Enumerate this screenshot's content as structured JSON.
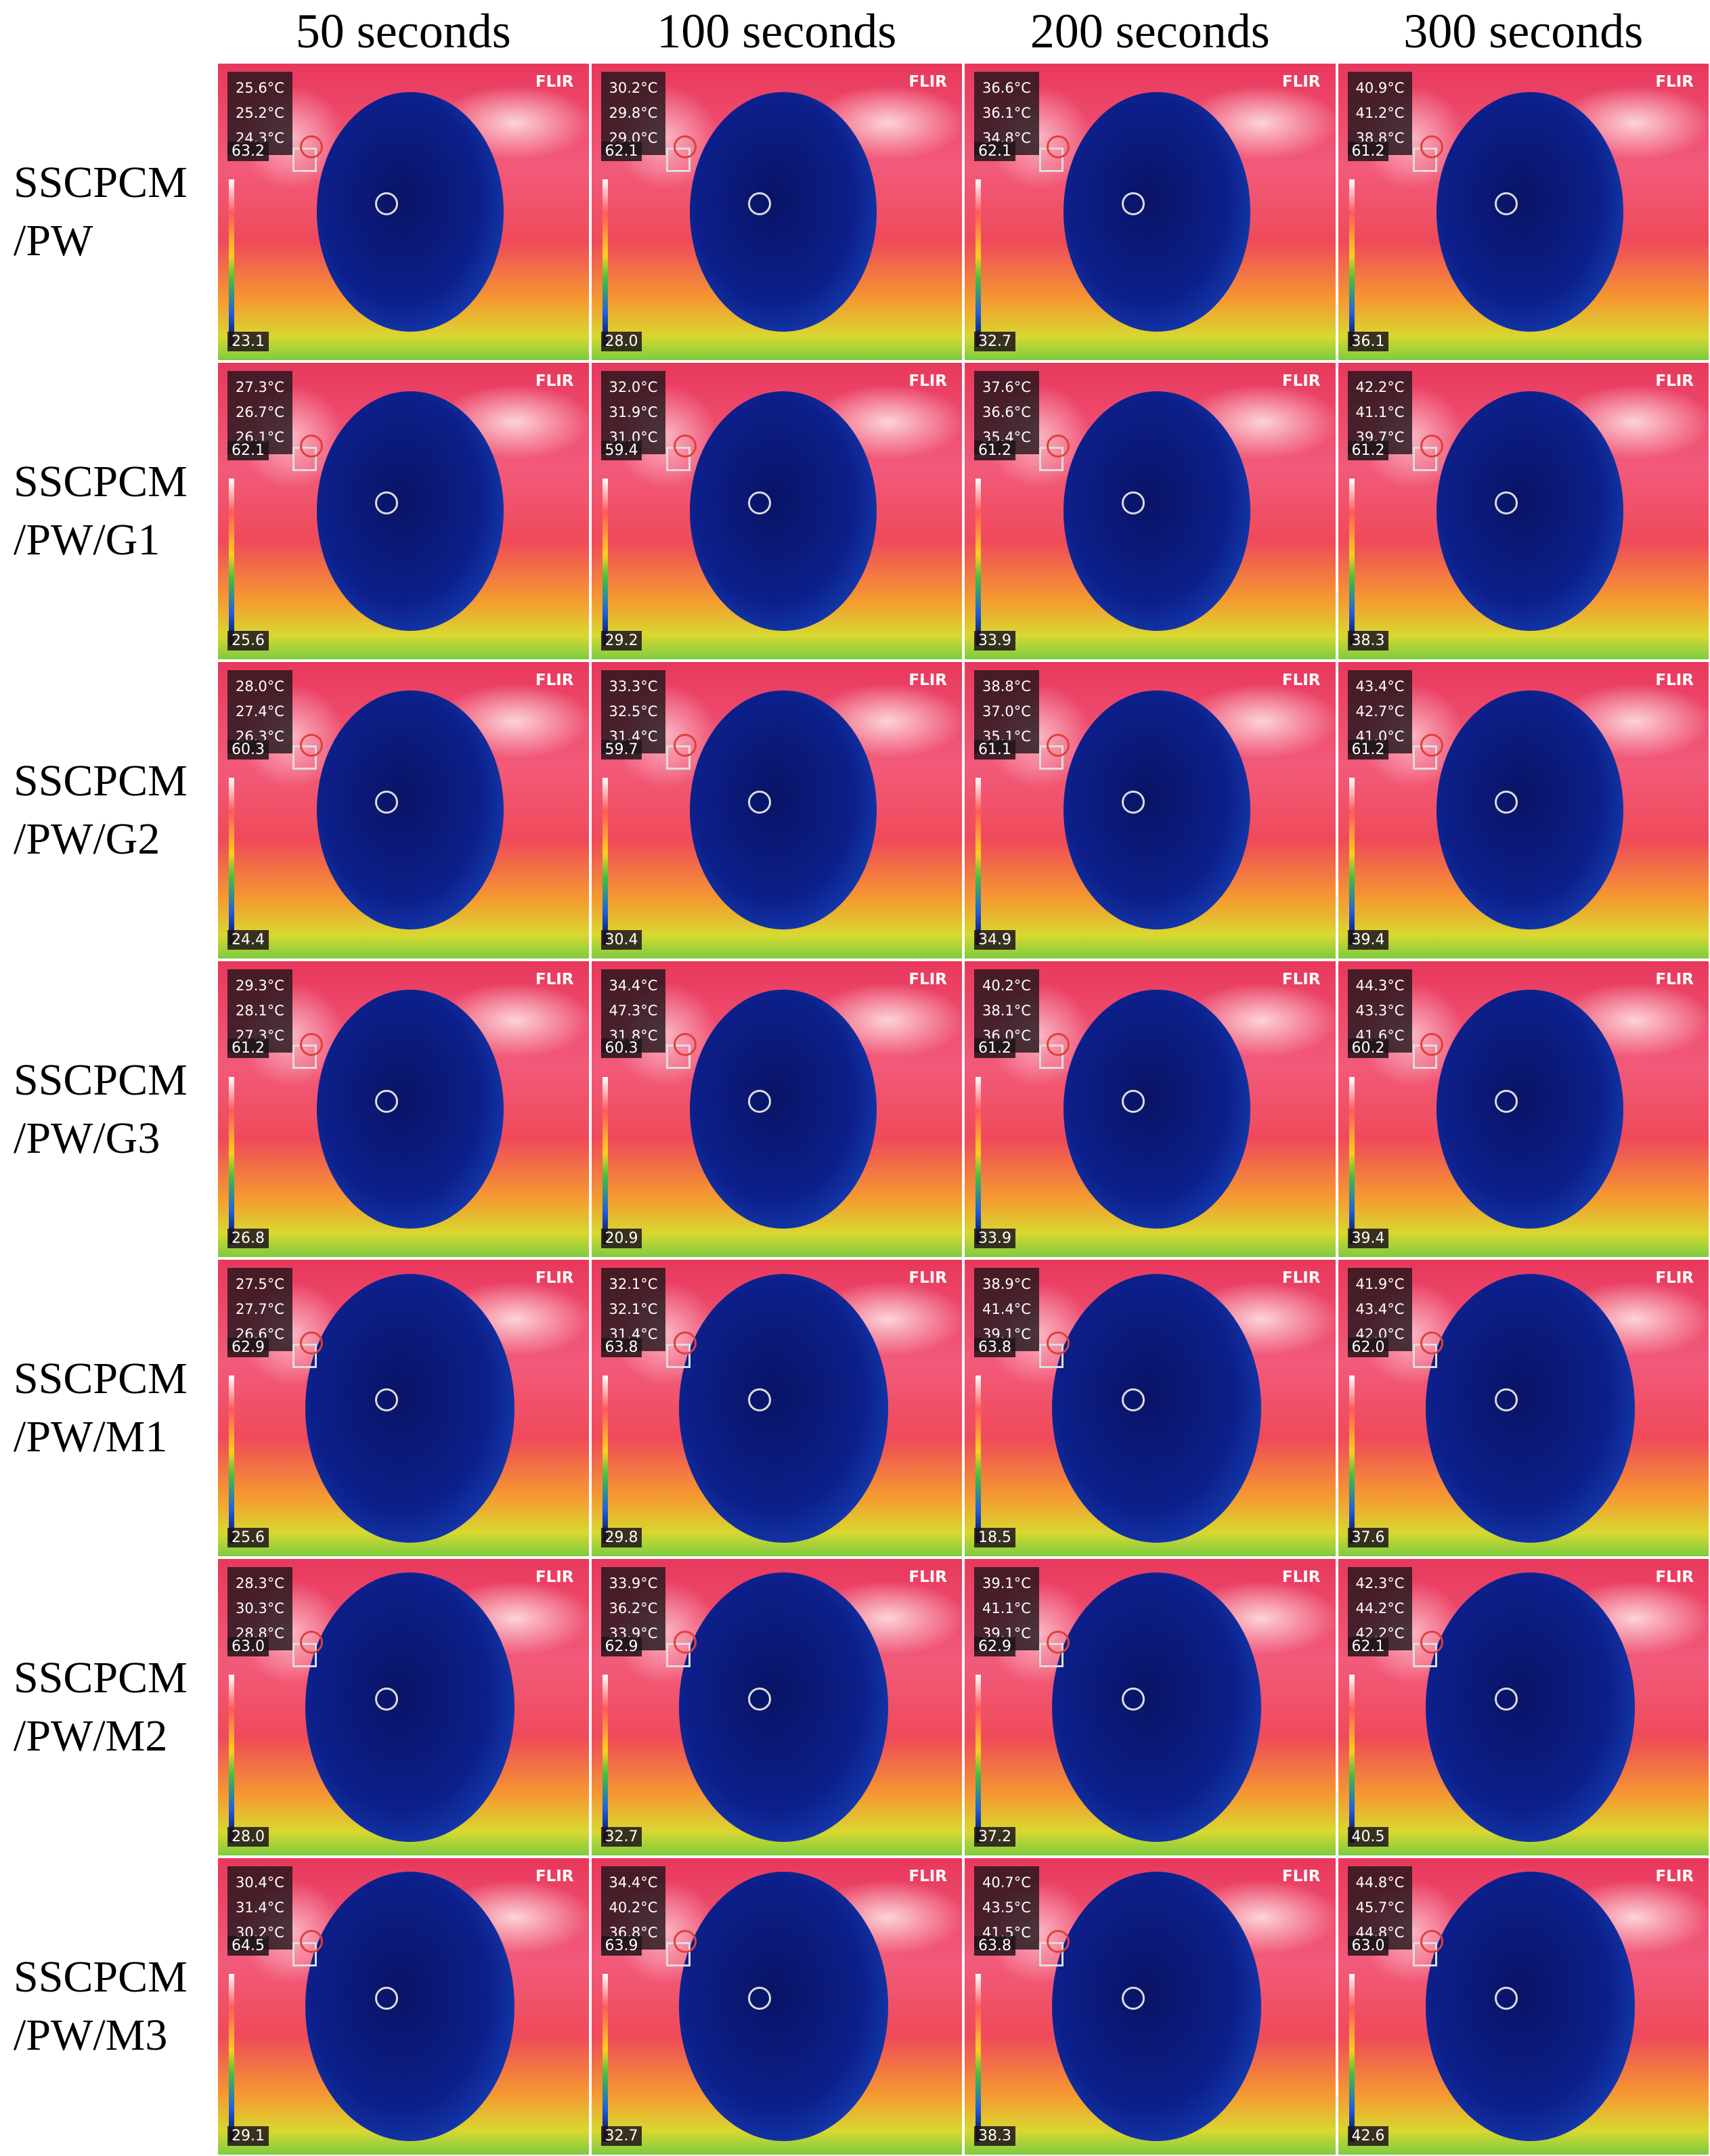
{
  "columns": [
    "50 seconds",
    "100 seconds",
    "200 seconds",
    "300 seconds"
  ],
  "brand": "FLIR",
  "rows": [
    {
      "label": [
        "SSCPCM",
        "/PW"
      ],
      "cells": [
        {
          "readings": [
            "25.6°C",
            "25.2°C",
            "24.3°C"
          ],
          "scale_max": "63.2",
          "scale_min": "23.1"
        },
        {
          "readings": [
            "30.2°C",
            "29.8°C",
            "29.0°C"
          ],
          "scale_max": "62.1",
          "scale_min": "28.0"
        },
        {
          "readings": [
            "36.6°C",
            "36.1°C",
            "34.8°C"
          ],
          "scale_max": "62.1",
          "scale_min": "32.7"
        },
        {
          "readings": [
            "40.9°C",
            "41.2°C",
            "38.8°C"
          ],
          "scale_max": "61.2",
          "scale_min": "36.1"
        }
      ]
    },
    {
      "label": [
        "SSCPCM",
        "/PW/G1"
      ],
      "cells": [
        {
          "readings": [
            "27.3°C",
            "26.7°C",
            "26.1°C"
          ],
          "scale_max": "62.1",
          "scale_min": "25.6"
        },
        {
          "readings": [
            "32.0°C",
            "31.9°C",
            "31.0°C"
          ],
          "scale_max": "59.4",
          "scale_min": "29.2"
        },
        {
          "readings": [
            "37.6°C",
            "36.6°C",
            "35.4°C"
          ],
          "scale_max": "61.2",
          "scale_min": "33.9"
        },
        {
          "readings": [
            "42.2°C",
            "41.1°C",
            "39.7°C"
          ],
          "scale_max": "61.2",
          "scale_min": "38.3"
        }
      ]
    },
    {
      "label": [
        "SSCPCM",
        "/PW/G2"
      ],
      "cells": [
        {
          "readings": [
            "28.0°C",
            "27.4°C",
            "26.3°C"
          ],
          "scale_max": "60.3",
          "scale_min": "24.4"
        },
        {
          "readings": [
            "33.3°C",
            "32.5°C",
            "31.4°C"
          ],
          "scale_max": "59.7",
          "scale_min": "30.4"
        },
        {
          "readings": [
            "38.8°C",
            "37.0°C",
            "35.1°C"
          ],
          "scale_max": "61.1",
          "scale_min": "34.9"
        },
        {
          "readings": [
            "43.4°C",
            "42.7°C",
            "41.0°C"
          ],
          "scale_max": "61.2",
          "scale_min": "39.4"
        }
      ]
    },
    {
      "label": [
        "SSCPCM",
        "/PW/G3"
      ],
      "cells": [
        {
          "readings": [
            "29.3°C",
            "28.1°C",
            "27.3°C"
          ],
          "scale_max": "61.2",
          "scale_min": "26.8"
        },
        {
          "readings": [
            "34.4°C",
            "47.3°C",
            "31.8°C"
          ],
          "scale_max": "60.3",
          "scale_min": "20.9"
        },
        {
          "readings": [
            "40.2°C",
            "38.1°C",
            "36.0°C"
          ],
          "scale_max": "61.2",
          "scale_min": "33.9"
        },
        {
          "readings": [
            "44.3°C",
            "43.3°C",
            "41.6°C"
          ],
          "scale_max": "60.2",
          "scale_min": "39.4"
        }
      ]
    },
    {
      "label": [
        "SSCPCM",
        "/PW/M1"
      ],
      "cells": [
        {
          "readings": [
            "27.5°C",
            "27.7°C",
            "26.6°C"
          ],
          "scale_max": "62.9",
          "scale_min": "25.6"
        },
        {
          "readings": [
            "32.1°C",
            "32.1°C",
            "31.4°C"
          ],
          "scale_max": "63.8",
          "scale_min": "29.8"
        },
        {
          "readings": [
            "38.9°C",
            "41.4°C",
            "39.1°C"
          ],
          "scale_max": "63.8",
          "scale_min": "18.5"
        },
        {
          "readings": [
            "41.9°C",
            "43.4°C",
            "42.0°C"
          ],
          "scale_max": "62.0",
          "scale_min": "37.6"
        }
      ]
    },
    {
      "label": [
        "SSCPCM",
        "/PW/M2"
      ],
      "cells": [
        {
          "readings": [
            "28.3°C",
            "30.3°C",
            "28.8°C"
          ],
          "scale_max": "63.0",
          "scale_min": "28.0"
        },
        {
          "readings": [
            "33.9°C",
            "36.2°C",
            "33.9°C"
          ],
          "scale_max": "62.9",
          "scale_min": "32.7"
        },
        {
          "readings": [
            "39.1°C",
            "41.1°C",
            "39.1°C"
          ],
          "scale_max": "62.9",
          "scale_min": "37.2"
        },
        {
          "readings": [
            "42.3°C",
            "44.2°C",
            "42.2°C"
          ],
          "scale_max": "62.1",
          "scale_min": "40.5"
        }
      ]
    },
    {
      "label": [
        "SSCPCM",
        "/PW/M3"
      ],
      "cells": [
        {
          "readings": [
            "30.4°C",
            "31.4°C",
            "30.2°C"
          ],
          "scale_max": "64.5",
          "scale_min": "29.1"
        },
        {
          "readings": [
            "34.4°C",
            "40.2°C",
            "36.8°C"
          ],
          "scale_max": "63.9",
          "scale_min": "32.7"
        },
        {
          "readings": [
            "40.7°C",
            "43.5°C",
            "41.5°C"
          ],
          "scale_max": "63.8",
          "scale_min": "38.3"
        },
        {
          "readings": [
            "44.8°C",
            "45.7°C",
            "44.8°C"
          ],
          "scale_max": "63.0",
          "scale_min": "42.6"
        }
      ]
    }
  ]
}
